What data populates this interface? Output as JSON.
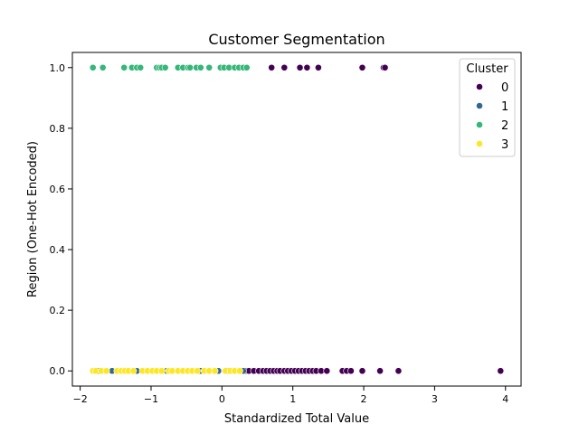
{
  "chart_data": {
    "type": "scatter",
    "title": "Customer Segmentation",
    "xlabel": "Standardized Total Value",
    "ylabel": "Region (One-Hot Encoded)",
    "xlim": [
      -2.11,
      4.22
    ],
    "ylim": [
      -0.05,
      1.05
    ],
    "x_ticks": [
      -2,
      -1,
      0,
      1,
      2,
      3,
      4
    ],
    "x_tick_labels": [
      "−2",
      "−1",
      "0",
      "1",
      "2",
      "3",
      "4"
    ],
    "y_ticks": [
      0.0,
      0.2,
      0.4,
      0.6,
      0.8,
      1.0
    ],
    "y_tick_labels": [
      "0.0",
      "0.2",
      "0.4",
      "0.6",
      "0.8",
      "1.0"
    ],
    "grid": false,
    "legend": {
      "title": "Cluster",
      "placement": "top-right"
    },
    "series": [
      {
        "name": "0",
        "color": "#440154",
        "points": [
          [
            0.7,
            1
          ],
          [
            0.88,
            1
          ],
          [
            1.1,
            1
          ],
          [
            1.2,
            1
          ],
          [
            1.36,
            1
          ],
          [
            1.98,
            1
          ],
          [
            2.28,
            1
          ],
          [
            2.3,
            1
          ],
          [
            0.33,
            0
          ],
          [
            0.38,
            0
          ],
          [
            0.45,
            0
          ],
          [
            0.52,
            0
          ],
          [
            0.58,
            0
          ],
          [
            0.63,
            0
          ],
          [
            0.68,
            0
          ],
          [
            0.73,
            0
          ],
          [
            0.78,
            0
          ],
          [
            0.82,
            0
          ],
          [
            0.88,
            0
          ],
          [
            0.93,
            0
          ],
          [
            0.98,
            0
          ],
          [
            1.03,
            0
          ],
          [
            1.08,
            0
          ],
          [
            1.13,
            0
          ],
          [
            1.18,
            0
          ],
          [
            1.23,
            0
          ],
          [
            1.28,
            0
          ],
          [
            1.33,
            0
          ],
          [
            1.4,
            0
          ],
          [
            1.48,
            0
          ],
          [
            1.7,
            0
          ],
          [
            1.76,
            0
          ],
          [
            1.82,
            0
          ],
          [
            1.98,
            0
          ],
          [
            2.23,
            0
          ],
          [
            2.49,
            0
          ],
          [
            3.93,
            0
          ]
        ]
      },
      {
        "name": "1",
        "color": "#31688e",
        "points": [
          [
            -1.75,
            0
          ],
          [
            -1.55,
            0
          ],
          [
            -1.2,
            0
          ],
          [
            -0.78,
            0
          ],
          [
            -0.3,
            0
          ],
          [
            -0.05,
            0
          ],
          [
            0.08,
            0
          ],
          [
            0.3,
            0
          ]
        ]
      },
      {
        "name": "2",
        "color": "#35b779",
        "points": [
          [
            -1.82,
            1
          ],
          [
            -1.68,
            1
          ],
          [
            -1.38,
            1
          ],
          [
            -1.27,
            1
          ],
          [
            -1.2,
            1
          ],
          [
            -1.15,
            1
          ],
          [
            -0.92,
            1
          ],
          [
            -0.88,
            1
          ],
          [
            -0.85,
            1
          ],
          [
            -0.8,
            1
          ],
          [
            -0.62,
            1
          ],
          [
            -0.55,
            1
          ],
          [
            -0.48,
            1
          ],
          [
            -0.45,
            1
          ],
          [
            -0.36,
            1
          ],
          [
            -0.3,
            1
          ],
          [
            -0.18,
            1
          ],
          [
            -0.02,
            1
          ],
          [
            0.03,
            1
          ],
          [
            0.1,
            1
          ],
          [
            0.18,
            1
          ],
          [
            0.24,
            1
          ],
          [
            0.3,
            1
          ],
          [
            0.35,
            1
          ]
        ]
      },
      {
        "name": "3",
        "color": "#fde725",
        "points": [
          [
            -1.82,
            0
          ],
          [
            -1.78,
            0
          ],
          [
            -1.7,
            0
          ],
          [
            -1.63,
            0
          ],
          [
            -1.48,
            0
          ],
          [
            -1.42,
            0
          ],
          [
            -1.37,
            0
          ],
          [
            -1.32,
            0
          ],
          [
            -1.25,
            0
          ],
          [
            -1.12,
            0
          ],
          [
            -1.05,
            0
          ],
          [
            -0.98,
            0
          ],
          [
            -0.92,
            0
          ],
          [
            -0.85,
            0
          ],
          [
            -0.75,
            0
          ],
          [
            -0.7,
            0
          ],
          [
            -0.62,
            0
          ],
          [
            -0.55,
            0
          ],
          [
            -0.48,
            0
          ],
          [
            -0.42,
            0
          ],
          [
            -0.35,
            0
          ],
          [
            -0.25,
            0
          ],
          [
            -0.18,
            0
          ],
          [
            -0.1,
            0
          ],
          [
            0.05,
            0
          ],
          [
            0.12,
            0
          ],
          [
            0.18,
            0
          ],
          [
            0.25,
            0
          ]
        ]
      }
    ]
  }
}
